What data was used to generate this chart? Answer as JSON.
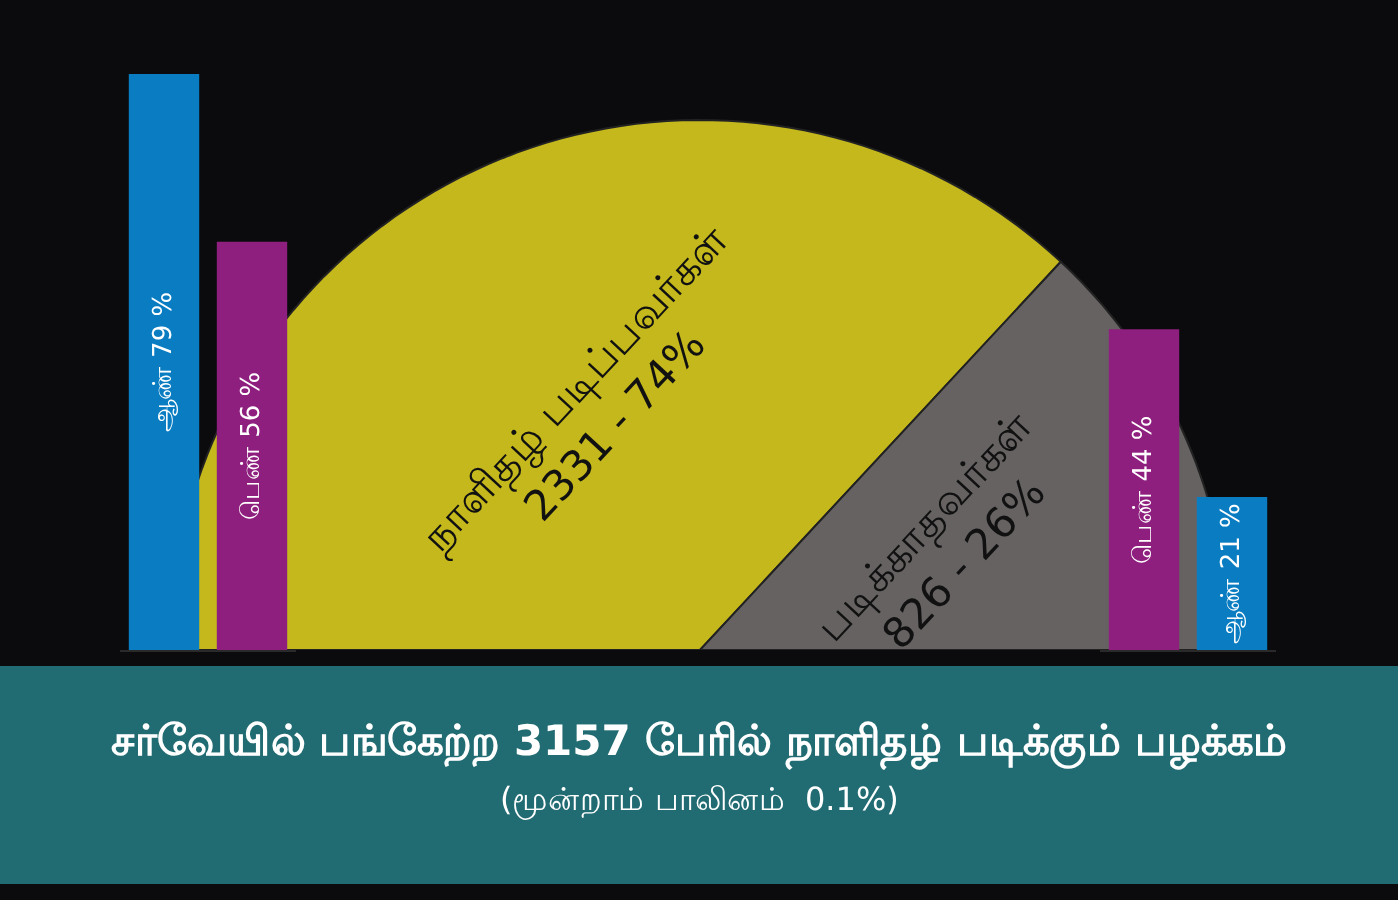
{
  "chart_data": [
    {
      "type": "bar",
      "categories": [
        null,
        null
      ],
      "values": [
        79,
        56
      ],
      "colors": [
        "#0a7dc2",
        "#8e1f7e"
      ],
      "value_labels": [
        "ஆண் 79 %",
        "பெண் 56 %"
      ],
      "tick_labels": false
    },
    {
      "type": "pie",
      "title": "சர்வேயில் பங்கேற்ற 3157 பேரில் நாளிதழ் படிக்கும் பழக்கம்",
      "subtitle": "(மூன்றாம் பாலினம்  0.1%)",
      "categories": [
        "நாளிதழ் படிப்பவர்கள்",
        "படிக்காதவர்கள்"
      ],
      "values": [
        2331,
        826
      ],
      "value_labels": [
        "2331 - 74%",
        "826 - 26%"
      ],
      "colors": [
        "#c4b81c",
        "#666262"
      ]
    },
    {
      "type": "bar",
      "categories": [
        null,
        null
      ],
      "values": [
        44,
        21
      ],
      "colors": [
        "#8e1f7e",
        "#0a7dc2"
      ],
      "value_labels": [
        "பெண் 44 %",
        "ஆண் 21 %"
      ],
      "tick_labels": false
    }
  ]
}
